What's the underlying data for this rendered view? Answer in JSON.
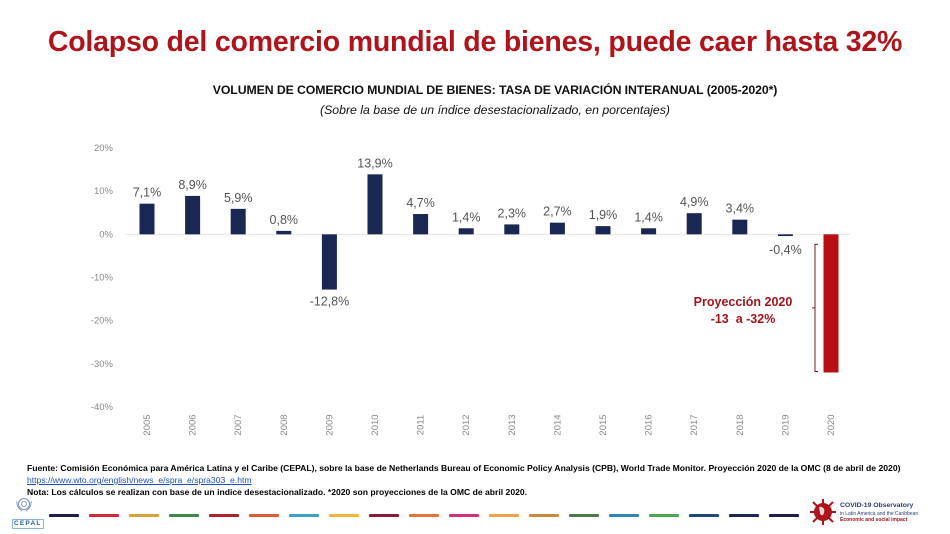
{
  "headline": "Colapso del comercio mundial de bienes, puede caer hasta 32%",
  "colors": {
    "headline": "#b0141b",
    "bar_historical": "#1b2753",
    "bar_projection": "#b80f14",
    "annotation": "#a3141b"
  },
  "chart_data": {
    "type": "bar",
    "title": "VOLUMEN DE COMERCIO MUNDIAL DE BIENES: TASA DE VARIACIÓN INTERANUAL (2005-2020*)",
    "subtitle": "(Sobre la base de un índice desestacionalizado, en porcentajes)",
    "xlabel": "",
    "ylabel": "",
    "categories": [
      "2005",
      "2006",
      "2007",
      "2008",
      "2009",
      "2010",
      "2011",
      "2012",
      "2013",
      "2014",
      "2015",
      "2016",
      "2017",
      "2018",
      "2019",
      "2020"
    ],
    "values": [
      7.1,
      8.9,
      5.9,
      0.8,
      -12.8,
      13.9,
      4.7,
      1.4,
      2.3,
      2.7,
      1.9,
      1.4,
      4.9,
      3.4,
      -0.4,
      -32
    ],
    "data_labels": [
      "7,1%",
      "8,9%",
      "5,9%",
      "0,8%",
      "-12,8%",
      "13,9%",
      "4,7%",
      "1,4%",
      "2,3%",
      "2,7%",
      "1,9%",
      "1,4%",
      "4,9%",
      "3,4%",
      "-0,4%",
      ""
    ],
    "projection_index": 15,
    "ylim": [
      -40,
      20
    ],
    "yticks": [
      20,
      10,
      0,
      -10,
      -20,
      -30,
      -40
    ],
    "ytick_labels": [
      "20%",
      "10%",
      "0%",
      "-10%",
      "-20%",
      "-30%",
      "-40%"
    ],
    "grid": false,
    "legend": "none",
    "annotation": {
      "line1": "Proyección 2020",
      "line2": "-13  a -32%",
      "range": [
        -13,
        -32
      ]
    }
  },
  "footer": {
    "source": "Fuente: Comisión Económica para América Latina y el Caribe (CEPAL), sobre la base de Netherlands Bureau of Economic Policy Analysis (CPB), World Trade Monitor. Proyección 2020 de la OMC (8 de abril de 2020)",
    "link": "https://www.wto.org/english/news_e/spra_e/spra303_e.htm",
    "note": "Nota: Los cálculos se realizan con base de un indice desestacionalizado. *2020 son proyecciones de la OMC de abril 2020."
  },
  "stripe_colors": [
    "#1b1f4a",
    "#d0283a",
    "#d6a336",
    "#3f8a4a",
    "#b0202e",
    "#e05a3a",
    "#3aa1c8",
    "#f1b53c",
    "#8b1a35",
    "#e5733a",
    "#d62e7a",
    "#f2a246",
    "#c98a3a",
    "#4c7a45",
    "#2f86b8",
    "#4ba84e",
    "#1d4a78",
    "#1b2a5a",
    "#1b1f4a"
  ],
  "logos": {
    "cepal": "CEPAL",
    "covid_title": "COVID-19 Observatory",
    "covid_sub1": "in Latin America and the Caribbean",
    "covid_sub2": "Economic and social impact"
  }
}
